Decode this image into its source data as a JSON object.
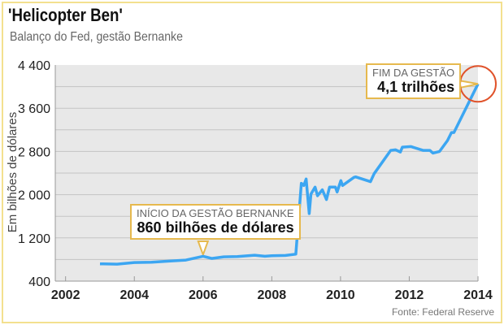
{
  "title": "'Helicopter Ben'",
  "subtitle": "Balanço do Fed, gestão Bernanke",
  "source": "Fonte: Federal Reserve",
  "colors": {
    "line": "#3ca6f2",
    "plot_bg": "#e8e8e8",
    "callout_border": "#e6b94e",
    "circle": "#e0522a",
    "frame": "#f3e08f"
  },
  "annotations": {
    "start": {
      "label": "INÍCIO DA GESTÃO BERNANKE",
      "value_bold": "860",
      "value_rest": " bilhões de dólares"
    },
    "end": {
      "label": "FIM DA GESTÃO",
      "value_bold": "4,1",
      "value_rest": " trilhões"
    }
  },
  "chart_data": {
    "type": "line",
    "title": "'Helicopter Ben'",
    "subtitle": "Balanço do Fed, gestão Bernanke",
    "xlabel": "",
    "ylabel": "Em bilhões de dólares",
    "xlim": [
      2001.7,
      2014
    ],
    "ylim": [
      400,
      4400
    ],
    "xticks": [
      2002,
      2004,
      2006,
      2008,
      2010,
      2012,
      2014
    ],
    "xtick_labels": [
      "2002",
      "2004",
      "2006",
      "2008",
      "2010",
      "2012",
      "2014"
    ],
    "yticks": [
      400,
      1200,
      2000,
      2800,
      3600,
      4400
    ],
    "ytick_labels": [
      "400",
      "1 200",
      "2 000",
      "2 800",
      "3 600",
      "4 400"
    ],
    "grid": true,
    "series": [
      {
        "name": "Balanço do Fed",
        "x": [
          2003.0,
          2003.5,
          2004.0,
          2004.5,
          2005.0,
          2005.5,
          2006.0,
          2006.25,
          2006.6,
          2007.0,
          2007.5,
          2007.8,
          2008.0,
          2008.4,
          2008.7,
          2008.86,
          2008.93,
          2009.0,
          2009.09,
          2009.14,
          2009.26,
          2009.33,
          2009.47,
          2009.59,
          2009.68,
          2009.85,
          2009.9,
          2010.01,
          2010.06,
          2010.39,
          2010.44,
          2010.87,
          2010.98,
          2011.46,
          2011.6,
          2011.74,
          2011.8,
          2012.05,
          2012.4,
          2012.6,
          2012.69,
          2012.88,
          2013.11,
          2013.23,
          2013.3,
          2014.0
        ],
        "y": [
          720,
          715,
          745,
          750,
          770,
          790,
          860,
          820,
          850,
          855,
          880,
          860,
          870,
          875,
          900,
          2210,
          2170,
          2290,
          1650,
          2010,
          2140,
          1980,
          2090,
          1910,
          2140,
          2140,
          2050,
          2260,
          2170,
          2320,
          2330,
          2240,
          2390,
          2820,
          2830,
          2790,
          2880,
          2890,
          2820,
          2820,
          2770,
          2800,
          3000,
          3150,
          3150,
          4050
        ]
      }
    ]
  }
}
